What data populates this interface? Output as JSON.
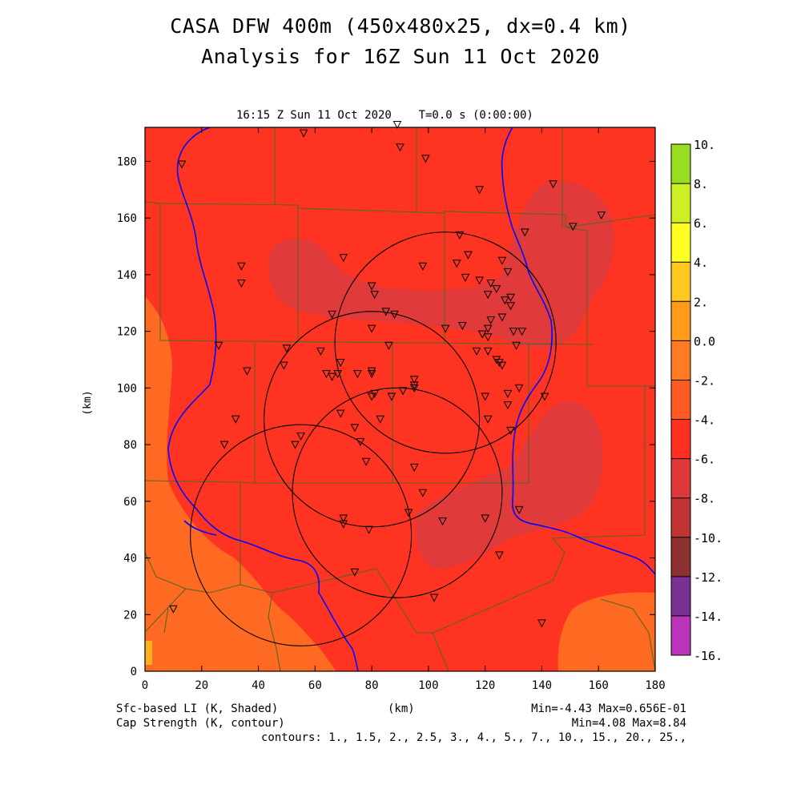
{
  "header": {
    "title_line1": "CASA DFW 400m (450x480x25, dx=0.4 km)",
    "title_line2": "Analysis for 16Z Sun 11 Oct 2020",
    "plot_time": "16:15 Z Sun 11 Oct 2020    T=0.0 s (0:00:00)"
  },
  "axes": {
    "x_label": "(km)",
    "y_label": "(km)",
    "x_ticks": [
      "0",
      "20",
      "40",
      "60",
      "80",
      "100",
      "120",
      "140",
      "160",
      "180"
    ],
    "y_ticks": [
      "0",
      "20",
      "40",
      "60",
      "80",
      "100",
      "120",
      "140",
      "160",
      "180"
    ],
    "x_range": [
      0,
      180
    ],
    "y_range": [
      0,
      192
    ]
  },
  "colorbar": {
    "labels": [
      "10.",
      "8.",
      "6.",
      "4.",
      "2.",
      "0.0",
      "-2.",
      "-4.",
      "-6.",
      "-8.",
      "-10.",
      "-12.",
      "-14.",
      "-16."
    ],
    "colors": [
      "#99dd22",
      "#ccf022",
      "#ffff22",
      "#ffc820",
      "#ff9a1a",
      "#ff7a22",
      "#ff5a22",
      "#ff3020",
      "#e03838",
      "#c03434",
      "#8c3030",
      "#7a3090",
      "#bb33bb",
      "#dd44dd"
    ]
  },
  "footer": {
    "left_line1": "Sfc-based LI (K, Shaded)",
    "left_line2": "Cap Strength (K, contour)",
    "center_label": "(km)",
    "right_line1": "Min=-4.43 Max=0.656E-01",
    "right_line2": "Min=4.08 Max=8.84",
    "contours": "contours: 1., 1.5, 2., 2.5, 3., 4., 5., 7., 10., 15., 20., 25.,"
  },
  "map_colors": {
    "base_field": "#ff3322",
    "warm_field": "#ff6a22",
    "cold_field": "#e03a3a",
    "river": "#0000ff",
    "county_line": "#556622",
    "radar_ring": "#000000"
  },
  "radars": [
    {
      "name": "radar-ring-1",
      "cx_km": 106,
      "cy_km": 116,
      "r_km": 39
    },
    {
      "name": "radar-ring-2",
      "cx_km": 80,
      "cy_km": 89,
      "r_km": 38
    },
    {
      "name": "radar-ring-3",
      "cx_km": 89,
      "cy_km": 63,
      "r_km": 37
    },
    {
      "name": "radar-ring-4",
      "cx_km": 55,
      "cy_km": 48,
      "r_km": 39
    }
  ],
  "stations_km": [
    [
      89,
      193
    ],
    [
      90,
      185
    ],
    [
      99,
      181
    ],
    [
      56,
      190
    ],
    [
      13,
      179
    ],
    [
      144,
      172
    ],
    [
      118,
      170
    ],
    [
      161,
      161
    ],
    [
      151,
      157
    ],
    [
      134,
      155
    ],
    [
      34,
      143
    ],
    [
      34,
      137
    ],
    [
      70,
      146
    ],
    [
      111,
      154
    ],
    [
      114,
      147
    ],
    [
      126,
      145
    ],
    [
      128,
      141
    ],
    [
      98,
      143
    ],
    [
      110,
      144
    ],
    [
      113,
      139
    ],
    [
      118,
      138
    ],
    [
      122,
      137
    ],
    [
      124,
      135
    ],
    [
      121,
      133
    ],
    [
      127,
      131
    ],
    [
      129,
      132
    ],
    [
      129,
      129
    ],
    [
      80,
      136
    ],
    [
      81,
      133
    ],
    [
      85,
      127
    ],
    [
      88,
      126
    ],
    [
      66,
      126
    ],
    [
      126,
      125
    ],
    [
      122,
      124
    ],
    [
      121,
      121
    ],
    [
      106,
      121
    ],
    [
      112,
      122
    ],
    [
      119,
      119
    ],
    [
      121,
      118
    ],
    [
      117,
      113
    ],
    [
      121,
      113
    ],
    [
      130,
      120
    ],
    [
      133,
      120
    ],
    [
      131,
      115
    ],
    [
      80,
      121
    ],
    [
      26,
      115
    ],
    [
      50,
      114
    ],
    [
      62,
      113
    ],
    [
      86,
      115
    ],
    [
      75,
      105
    ],
    [
      68,
      105
    ],
    [
      64,
      105
    ],
    [
      66,
      104
    ],
    [
      80,
      106
    ],
    [
      80,
      105
    ],
    [
      36,
      106
    ],
    [
      49,
      108
    ],
    [
      69,
      109
    ],
    [
      125,
      109
    ],
    [
      126,
      108
    ],
    [
      124,
      110
    ],
    [
      132,
      100
    ],
    [
      128,
      98
    ],
    [
      95,
      103
    ],
    [
      95,
      101
    ],
    [
      95,
      100
    ],
    [
      91,
      99
    ],
    [
      81,
      98
    ],
    [
      80,
      97
    ],
    [
      87,
      97
    ],
    [
      128,
      94
    ],
    [
      141,
      97
    ],
    [
      120,
      97
    ],
    [
      32,
      89
    ],
    [
      28,
      80
    ],
    [
      55,
      83
    ],
    [
      53,
      80
    ],
    [
      69,
      91
    ],
    [
      74,
      86
    ],
    [
      76,
      81
    ],
    [
      78,
      74
    ],
    [
      83,
      89
    ],
    [
      121,
      89
    ],
    [
      129,
      85
    ],
    [
      98,
      63
    ],
    [
      95,
      72
    ],
    [
      132,
      57
    ],
    [
      120,
      54
    ],
    [
      105,
      53
    ],
    [
      93,
      56
    ],
    [
      70,
      52
    ],
    [
      70,
      54
    ],
    [
      79,
      50
    ],
    [
      125,
      41
    ],
    [
      74,
      35
    ],
    [
      102,
      26
    ],
    [
      140,
      17
    ],
    [
      10,
      22
    ]
  ]
}
